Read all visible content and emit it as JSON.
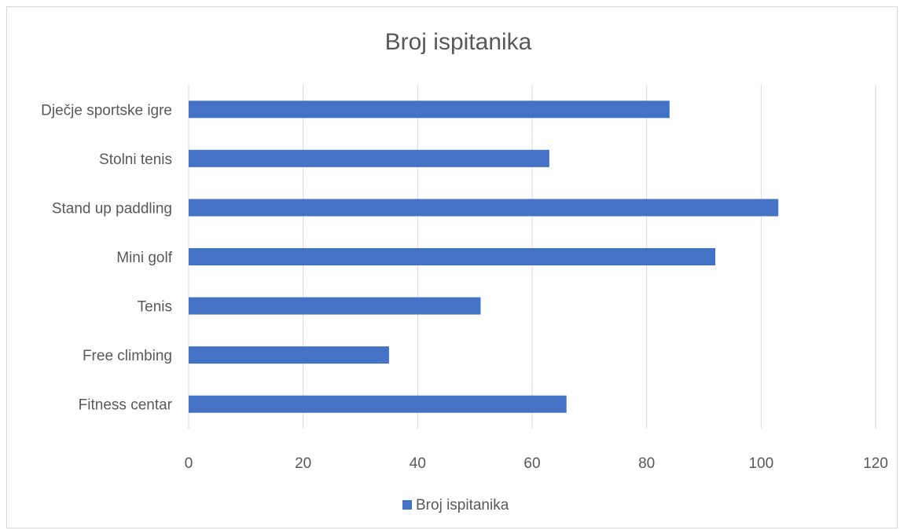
{
  "chart_data": {
    "type": "bar",
    "orientation": "horizontal",
    "title": "Broj ispitanika",
    "categories": [
      "Fitness centar",
      "Free climbing",
      "Tenis",
      "Mini golf",
      "Stand up paddling",
      "Stolni tenis",
      "Dječje sportske igre"
    ],
    "series": [
      {
        "name": "Broj ispitanika",
        "values": [
          66,
          35,
          51,
          92,
          103,
          63,
          84
        ],
        "color": "#4472C4"
      }
    ],
    "xlim": [
      0,
      120
    ],
    "xticks": [
      "0",
      "20",
      "40",
      "60",
      "80",
      "100",
      "120"
    ],
    "grid": true,
    "legend_position": "bottom"
  }
}
